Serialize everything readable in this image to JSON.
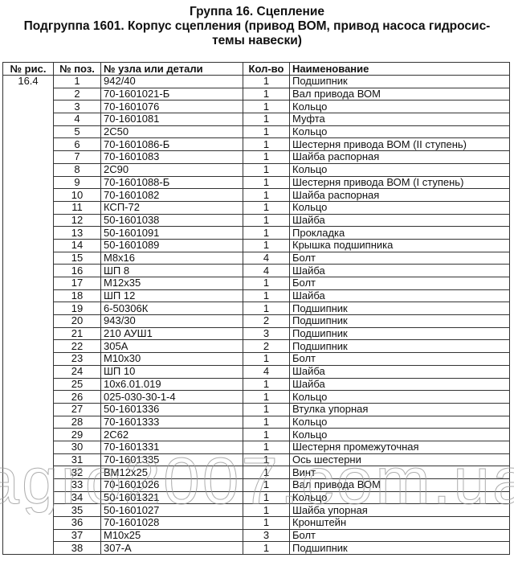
{
  "title": {
    "line1": "Группа 16. Сцепление",
    "line2": "Подгруппа 1601. Корпус сцепления (привод ВОМ, привод насоса гидросис-",
    "line3": "темы навески)"
  },
  "table": {
    "headers": [
      "№ рис.",
      "№ поз.",
      "№ узла или детали",
      "Кол-во",
      "Наименование"
    ],
    "figure": "16.4",
    "rows": [
      [
        "1",
        "942/40",
        "1",
        "Подшипник"
      ],
      [
        "2",
        "70-1601021-Б",
        "1",
        "Вал привода ВОМ"
      ],
      [
        "3",
        "70-1601076",
        "1",
        "Кольцо"
      ],
      [
        "4",
        "70-1601081",
        "1",
        "Муфта"
      ],
      [
        "5",
        "2С50",
        "1",
        "Кольцо"
      ],
      [
        "6",
        "70-1601086-Б",
        "1",
        "Шестерня привода ВОМ (II ступень)"
      ],
      [
        "7",
        "70-1601083",
        "1",
        "Шайба распорная"
      ],
      [
        "8",
        "2С90",
        "1",
        "Кольцо"
      ],
      [
        "9",
        "70-1601088-Б",
        "1",
        "Шестерня привода ВОМ (I ступень)"
      ],
      [
        "10",
        "70-1601082",
        "1",
        "Шайба распорная"
      ],
      [
        "11",
        "КСП-72",
        "1",
        "Кольцо"
      ],
      [
        "12",
        "50-1601038",
        "1",
        "Шайба"
      ],
      [
        "13",
        "50-1601091",
        "1",
        "Прокладка"
      ],
      [
        "14",
        "50-1601089",
        "1",
        "Крышка подшипника"
      ],
      [
        "15",
        "М8х16",
        "4",
        "Болт"
      ],
      [
        "16",
        "ШП 8",
        "4",
        "Шайба"
      ],
      [
        "17",
        "М12х35",
        "1",
        "Болт"
      ],
      [
        "18",
        "ШП 12",
        "1",
        "Шайба"
      ],
      [
        "19",
        "6-50306К",
        "1",
        "Подшипник"
      ],
      [
        "20",
        "943/30",
        "2",
        "Подшипник"
      ],
      [
        "21",
        "210 АУШ1",
        "3",
        "Подшипник"
      ],
      [
        "22",
        "305А",
        "2",
        "Подшипник"
      ],
      [
        "23",
        "М10х30",
        "1",
        "Болт"
      ],
      [
        "24",
        "ШП 10",
        "4",
        "Шайба"
      ],
      [
        "25",
        "10х6.01.019",
        "1",
        "Шайба"
      ],
      [
        "26",
        "025-030-30-1-4",
        "1",
        "Кольцо"
      ],
      [
        "27",
        "50-1601336",
        "1",
        "Втулка упорная"
      ],
      [
        "28",
        "70-1601333",
        "1",
        "Кольцо"
      ],
      [
        "29",
        "2С62",
        "1",
        "Кольцо"
      ],
      [
        "30",
        "70-1601331",
        "1",
        "Шестерня промежуточная"
      ],
      [
        "31",
        "70-1601335",
        "1",
        "Ось шестерни"
      ],
      [
        "32",
        "ВМ12х25",
        "1",
        "Винт"
      ],
      [
        "33",
        "70-1601026",
        "1",
        "Вал привода ВОМ"
      ],
      [
        "34",
        "50-1601321",
        "1",
        "Кольцо"
      ],
      [
        "35",
        "50-1601027",
        "1",
        "Шайба упорная"
      ],
      [
        "36",
        "70-1601028",
        "1",
        "Кронштейн"
      ],
      [
        "37",
        "М10х25",
        "3",
        "Болт"
      ],
      [
        "38",
        "307-А",
        "1",
        "Подшипник"
      ]
    ]
  },
  "watermark": "agro2007.com.ua"
}
